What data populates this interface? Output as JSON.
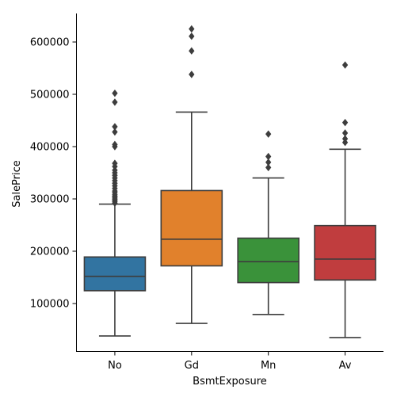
{
  "chart_data": {
    "type": "box",
    "title": "",
    "xlabel": "BsmtExposure",
    "ylabel": "SalePrice",
    "categories": [
      "No",
      "Gd",
      "Mn",
      "Av"
    ],
    "ylim": [
      5000,
      655000
    ],
    "yticks": [
      100000,
      200000,
      300000,
      400000,
      500000,
      600000
    ],
    "ytick_labels": [
      "100000",
      "200000",
      "300000",
      "400000",
      "500000",
      "600000"
    ],
    "grid": false,
    "boxes": [
      {
        "category": "No",
        "color": "#3274a1",
        "whisker_low": 37900,
        "q1": 124500,
        "median": 152000,
        "q3": 189000,
        "whisker_high": 290000,
        "outliers": [
          292000,
          295000,
          298000,
          300000,
          303000,
          305000,
          308000,
          312000,
          315000,
          320000,
          325000,
          330000,
          335000,
          340000,
          345000,
          350000,
          355000,
          362000,
          368000,
          400000,
          404000,
          428000,
          438000,
          485000,
          502000
        ]
      },
      {
        "category": "Gd",
        "color": "#e1812c",
        "whisker_low": 62000,
        "q1": 172000,
        "median": 223000,
        "q3": 316000,
        "whisker_high": 466000,
        "outliers": [
          538000,
          583000,
          611000,
          625000
        ]
      },
      {
        "category": "Mn",
        "color": "#3a923a",
        "whisker_low": 79000,
        "q1": 140000,
        "median": 180000,
        "q3": 225000,
        "whisker_high": 340000,
        "outliers": [
          360000,
          370000,
          381000,
          424000
        ]
      },
      {
        "category": "Av",
        "color": "#c03d3e",
        "whisker_low": 35000,
        "q1": 145000,
        "median": 185000,
        "q3": 249000,
        "whisker_high": 395000,
        "outliers": [
          408000,
          415000,
          426000,
          446000,
          556000
        ]
      }
    ]
  }
}
